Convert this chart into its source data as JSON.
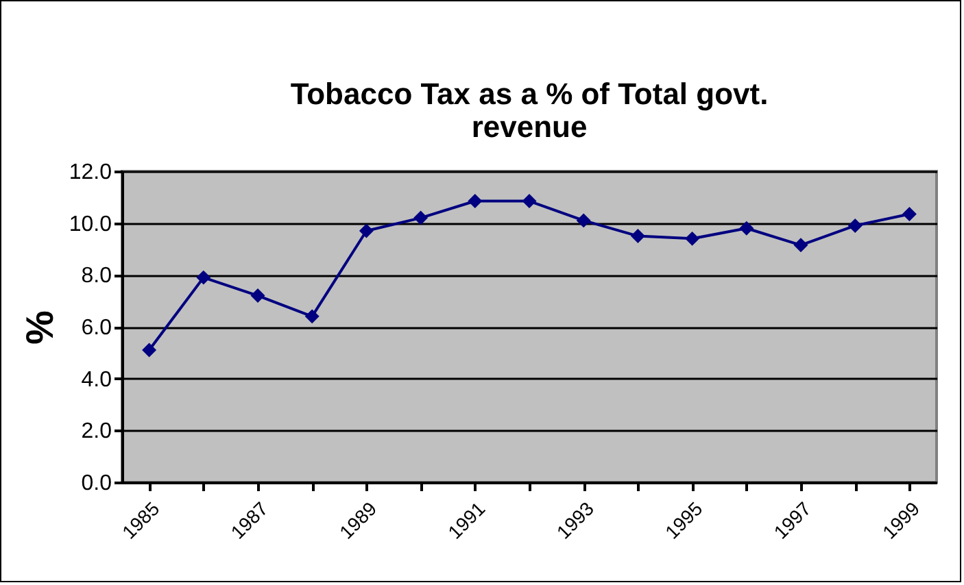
{
  "chart_data": {
    "type": "line",
    "title": "Tobacco Tax as a % of Total govt. revenue",
    "ylabel": "%",
    "categories": [
      "1985",
      null,
      "1987",
      null,
      "1989",
      null,
      "1991",
      null,
      "1993",
      null,
      "1995",
      null,
      "1997",
      null,
      "1999"
    ],
    "series": [
      {
        "color": "#000080",
        "values": [
          5.1,
          7.9,
          7.2,
          6.4,
          9.7,
          10.2,
          10.85,
          10.85,
          10.1,
          9.5,
          9.4,
          9.8,
          9.15,
          9.9,
          10.35
        ]
      }
    ],
    "ylim": [
      0,
      12
    ],
    "yticks": [
      {
        "value": 0,
        "label": "0.0"
      },
      {
        "value": 2,
        "label": "2.0"
      },
      {
        "value": 4,
        "label": "4.0"
      },
      {
        "value": 6,
        "label": "6.0"
      },
      {
        "value": 8,
        "label": "8.0"
      },
      {
        "value": 10,
        "label": "10.0"
      },
      {
        "value": 12,
        "label": "12.0"
      }
    ],
    "grid": "y",
    "marker": "diamond",
    "line_style": "solid"
  }
}
